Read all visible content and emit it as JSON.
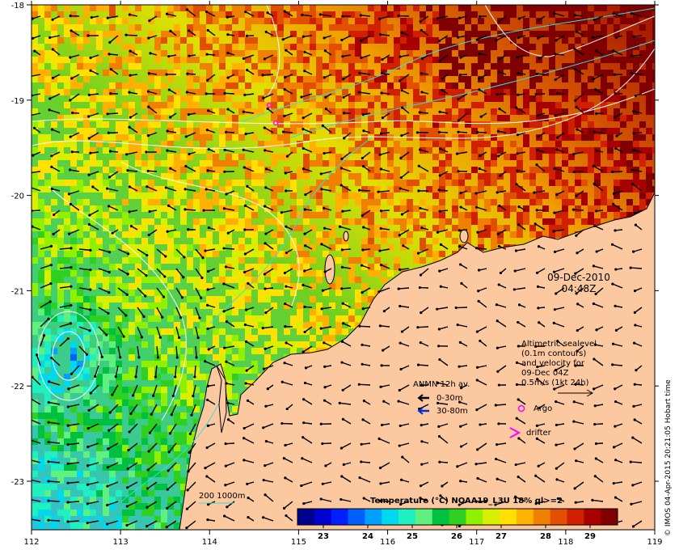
{
  "map": {
    "x_ticks": [
      "112",
      "113",
      "114",
      "115",
      "116",
      "117",
      "118",
      "119"
    ],
    "y_ticks": [
      "-18",
      "-19",
      "-20",
      "-21",
      "-22",
      "-23"
    ],
    "land_color": "#fcc8a0",
    "coast_color": "#000000"
  },
  "timestamp": {
    "date": "09-Dec-2010",
    "time": "04:48Z"
  },
  "sealevel_note": {
    "line1": "Altimetric sealevel",
    "line2": "(0.1m contours)",
    "line3": "and velocity for",
    "line4": "09-Dec 04Z",
    "line5": "0.5m/s (1kt 24h)"
  },
  "anmn_legend": {
    "title": "ANMN 12h av.",
    "row1_label": "0-30m",
    "row1_color": "#000000",
    "row2_label": "30-80m",
    "row2_color": "#0000ff"
  },
  "argo_legend": {
    "label": "Argo",
    "symbol": "magenta-circle-icon",
    "color": "#ff00ff"
  },
  "drifter_legend": {
    "label": "drifter",
    "symbol": "magenta-chevron-icon",
    "color": "#ff00ff"
  },
  "isobath_legend": {
    "label": "200  1000m",
    "color": "#00cccc"
  },
  "colorbar": {
    "title": "Temperature (°C) NOAA19_L3U 18% ql>=2",
    "tick_labels": [
      "23",
      "24",
      "25",
      "26",
      "27",
      "28",
      "29"
    ],
    "colors": [
      "#00008f",
      "#0000cf",
      "#0020ff",
      "#0060ff",
      "#00a0ff",
      "#00d8f0",
      "#20f0c0",
      "#60f080",
      "#00c040",
      "#30d020",
      "#90f000",
      "#d8f000",
      "#ffe000",
      "#ffb000",
      "#f08000",
      "#e05000",
      "#d02000",
      "#a80000",
      "#800000"
    ]
  },
  "credit": "© IMOS 04-Apr-2015 20:21:05 Hobart time"
}
